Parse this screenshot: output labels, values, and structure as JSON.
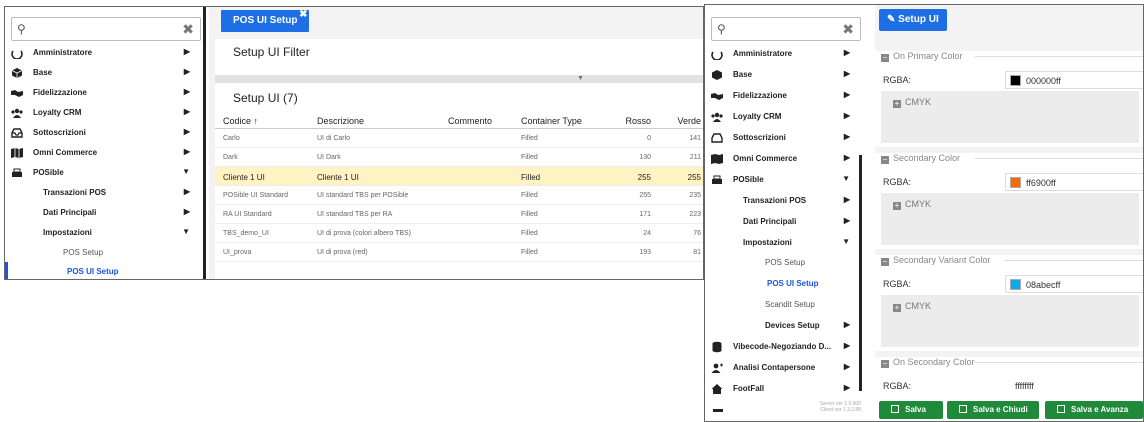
{
  "left": {
    "search": {
      "value": ""
    },
    "nav": [
      {
        "label": "Amministratore",
        "icon": "circle-arrow-icon"
      },
      {
        "label": "Base",
        "icon": "cube-icon"
      },
      {
        "label": "Fidelizzazione",
        "icon": "handshake-icon"
      },
      {
        "label": "Loyalty CRM",
        "icon": "users-icon"
      },
      {
        "label": "Sottoscrizioni",
        "icon": "inbox-icon"
      },
      {
        "label": "Omni Commerce",
        "icon": "map-icon"
      },
      {
        "label": "POSible",
        "icon": "cash-register-icon"
      },
      {
        "label": "Transazioni POS"
      },
      {
        "label": "Dati Principali"
      },
      {
        "label": "Impostazioni"
      },
      {
        "label": "POS Setup"
      },
      {
        "label": "POS UI Setup"
      }
    ],
    "tab": {
      "label": "POS UI Setup"
    },
    "filter_title": "Setup UI Filter",
    "grid": {
      "title": "Setup UI (7)",
      "headers": {
        "codice": "Codice",
        "descrizione": "Descrizione",
        "commento": "Commento",
        "container": "Container Type",
        "rosso": "Rosso",
        "verde": "Verde"
      },
      "rows": [
        {
          "codice": "Carlo",
          "descrizione": "UI di Carlo",
          "commento": "",
          "container": "Filled",
          "rosso": "0",
          "verde": "141"
        },
        {
          "codice": "Dark",
          "descrizione": "UI Dark",
          "commento": "",
          "container": "Filled",
          "rosso": "130",
          "verde": "211"
        },
        {
          "codice": "Cliente 1 UI",
          "descrizione": "Cliente 1 UI",
          "commento": "",
          "container": "Filled",
          "rosso": "255",
          "verde": "255"
        },
        {
          "codice": "POSible UI Standard",
          "descrizione": "UI standard TBS per POSible",
          "commento": "",
          "container": "Filled",
          "rosso": "255",
          "verde": "235"
        },
        {
          "codice": "RA UI Standard",
          "descrizione": "UI standard TBS per RA",
          "commento": "",
          "container": "Filled",
          "rosso": "171",
          "verde": "223"
        },
        {
          "codice": "TBS_demo_UI",
          "descrizione": "UI di prova (colori albero TBS)",
          "commento": "",
          "container": "Filled",
          "rosso": "24",
          "verde": "76"
        },
        {
          "codice": "UI_prova",
          "descrizione": "UI di prova (red)",
          "commento": "",
          "container": "Filled",
          "rosso": "193",
          "verde": "81"
        }
      ]
    }
  },
  "right": {
    "nav": [
      {
        "label": "Amministratore"
      },
      {
        "label": "Base"
      },
      {
        "label": "Fidelizzazione"
      },
      {
        "label": "Loyalty CRM"
      },
      {
        "label": "Sottoscrizioni"
      },
      {
        "label": "Omni Commerce"
      },
      {
        "label": "POSible"
      },
      {
        "label": "Transazioni POS"
      },
      {
        "label": "Dati Principali"
      },
      {
        "label": "Impostazioni"
      },
      {
        "label": "POS Setup"
      },
      {
        "label": "POS UI Setup"
      },
      {
        "label": "Scandit Setup"
      },
      {
        "label": "Devices Setup"
      },
      {
        "label": "Vibecode-Negoziando D..."
      },
      {
        "label": "Analisi Contapersone"
      },
      {
        "label": "FootFall"
      }
    ],
    "version": {
      "server": "Server ver 1.0.000",
      "client": "Client ver 1.3.2.88"
    },
    "setup_button": "Setup UI",
    "sections": [
      {
        "title": "On Primary Color",
        "rgba_label": "RGBA:",
        "value": "000000ff",
        "swatch": "#000000",
        "cmyk": "CMYK"
      },
      {
        "title": "Secondary Color",
        "rgba_label": "RGBA:",
        "value": "ff6900ff",
        "swatch": "#ff6900",
        "cmyk": "CMYK"
      },
      {
        "title": "Secondary Variant Color",
        "rgba_label": "RGBA:",
        "value": "08abecff",
        "swatch": "#08abec",
        "cmyk": "CMYK"
      },
      {
        "title": "On Secondary Color",
        "rgba_label": "RGBA:",
        "value": "ffffffff",
        "swatch": "#ffffff",
        "cmyk": ""
      }
    ],
    "footer": {
      "save": "Salva",
      "save_close": "Salva e Chiudi",
      "save_next": "Salva e Avanza"
    }
  },
  "colors": {
    "accent": "#1e6fe6",
    "selected_row": "#fff3c4",
    "save_green": "#1e8a3a",
    "active_link": "#1a56db"
  }
}
